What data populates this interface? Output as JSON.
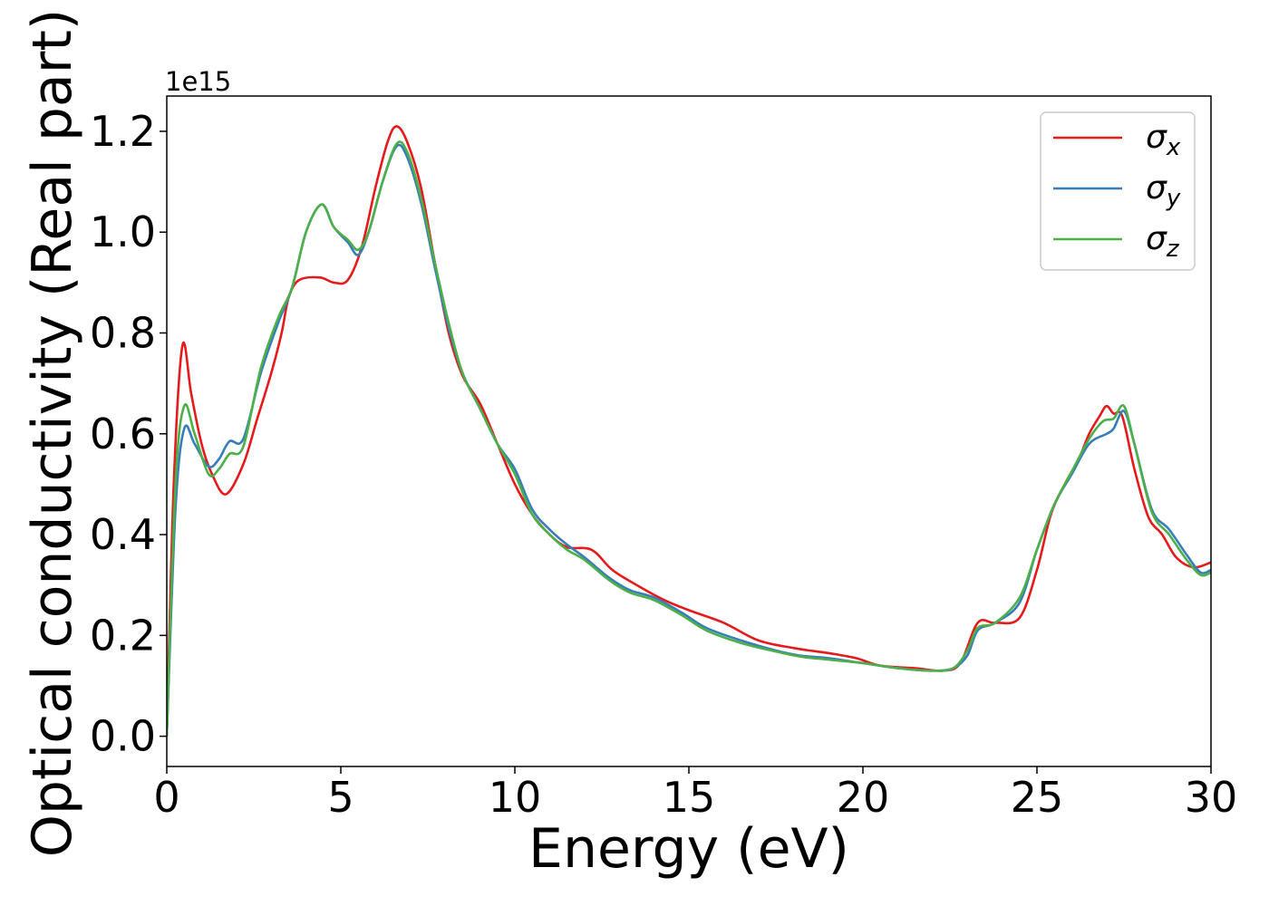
{
  "chart_data": {
    "type": "line",
    "xlabel": "Energy (eV)",
    "ylabel": "Optical conductivity (Real part)",
    "y_offset_label": "1e15",
    "xlim": [
      0,
      30
    ],
    "ylim": [
      -0.06,
      1.27
    ],
    "x_ticks": [
      0,
      5,
      10,
      15,
      20,
      25,
      30
    ],
    "x_tick_labels": [
      "0",
      "5",
      "10",
      "15",
      "20",
      "25",
      "30"
    ],
    "y_ticks": [
      0.0,
      0.2,
      0.4,
      0.6,
      0.8,
      1.0,
      1.2
    ],
    "y_tick_labels": [
      "0.0",
      "0.2",
      "0.4",
      "0.6",
      "0.8",
      "1.0",
      "1.2"
    ],
    "grid": false,
    "legend_position": "top-right",
    "series": [
      {
        "name": "σx",
        "symbol": "σ",
        "subscript": "x",
        "color": "#e41a1c",
        "points": [
          [
            0,
            0.0
          ],
          [
            0.2,
            0.5
          ],
          [
            0.45,
            0.775
          ],
          [
            0.7,
            0.68
          ],
          [
            1.0,
            0.58
          ],
          [
            1.3,
            0.52
          ],
          [
            1.7,
            0.48
          ],
          [
            2.2,
            0.54
          ],
          [
            2.6,
            0.63
          ],
          [
            3.0,
            0.72
          ],
          [
            3.3,
            0.8
          ],
          [
            3.5,
            0.87
          ],
          [
            3.8,
            0.905
          ],
          [
            4.4,
            0.91
          ],
          [
            4.8,
            0.9
          ],
          [
            5.2,
            0.905
          ],
          [
            5.6,
            0.97
          ],
          [
            6.0,
            1.09
          ],
          [
            6.35,
            1.18
          ],
          [
            6.6,
            1.21
          ],
          [
            6.9,
            1.18
          ],
          [
            7.3,
            1.09
          ],
          [
            7.7,
            0.94
          ],
          [
            8.1,
            0.8
          ],
          [
            8.5,
            0.715
          ],
          [
            9.0,
            0.66
          ],
          [
            9.5,
            0.58
          ],
          [
            10.0,
            0.5
          ],
          [
            10.5,
            0.44
          ],
          [
            11.0,
            0.4
          ],
          [
            11.5,
            0.375
          ],
          [
            12.2,
            0.37
          ],
          [
            12.8,
            0.33
          ],
          [
            13.5,
            0.3
          ],
          [
            14.3,
            0.27
          ],
          [
            15.0,
            0.25
          ],
          [
            16.0,
            0.225
          ],
          [
            17.0,
            0.19
          ],
          [
            18.0,
            0.175
          ],
          [
            19.0,
            0.165
          ],
          [
            19.8,
            0.155
          ],
          [
            20.5,
            0.14
          ],
          [
            21.5,
            0.135
          ],
          [
            22.3,
            0.13
          ],
          [
            22.8,
            0.145
          ],
          [
            23.3,
            0.225
          ],
          [
            23.8,
            0.225
          ],
          [
            24.5,
            0.235
          ],
          [
            25.0,
            0.33
          ],
          [
            25.4,
            0.44
          ],
          [
            25.8,
            0.5
          ],
          [
            26.2,
            0.55
          ],
          [
            26.5,
            0.6
          ],
          [
            26.8,
            0.635
          ],
          [
            27.0,
            0.655
          ],
          [
            27.2,
            0.64
          ],
          [
            27.45,
            0.635
          ],
          [
            27.8,
            0.53
          ],
          [
            28.2,
            0.435
          ],
          [
            28.6,
            0.4
          ],
          [
            29.0,
            0.355
          ],
          [
            29.5,
            0.335
          ],
          [
            30.0,
            0.345
          ]
        ]
      },
      {
        "name": "σy",
        "symbol": "σ",
        "subscript": "y",
        "color": "#377eb8",
        "points": [
          [
            0,
            0.0
          ],
          [
            0.25,
            0.45
          ],
          [
            0.5,
            0.61
          ],
          [
            0.8,
            0.58
          ],
          [
            1.2,
            0.535
          ],
          [
            1.5,
            0.55
          ],
          [
            1.8,
            0.585
          ],
          [
            2.2,
            0.59
          ],
          [
            2.7,
            0.72
          ],
          [
            3.2,
            0.82
          ],
          [
            3.6,
            0.89
          ],
          [
            4.0,
            1.0
          ],
          [
            4.45,
            1.055
          ],
          [
            4.8,
            1.01
          ],
          [
            5.2,
            0.98
          ],
          [
            5.5,
            0.955
          ],
          [
            5.8,
            1.0
          ],
          [
            6.2,
            1.1
          ],
          [
            6.6,
            1.17
          ],
          [
            6.9,
            1.15
          ],
          [
            7.3,
            1.06
          ],
          [
            7.7,
            0.93
          ],
          [
            8.1,
            0.81
          ],
          [
            8.5,
            0.72
          ],
          [
            9.0,
            0.65
          ],
          [
            9.5,
            0.58
          ],
          [
            10.0,
            0.53
          ],
          [
            10.5,
            0.45
          ],
          [
            11.0,
            0.41
          ],
          [
            11.5,
            0.38
          ],
          [
            12.0,
            0.355
          ],
          [
            12.7,
            0.315
          ],
          [
            13.3,
            0.29
          ],
          [
            14.0,
            0.275
          ],
          [
            14.8,
            0.245
          ],
          [
            15.5,
            0.215
          ],
          [
            16.5,
            0.19
          ],
          [
            17.5,
            0.17
          ],
          [
            18.2,
            0.16
          ],
          [
            19.0,
            0.155
          ],
          [
            20.0,
            0.145
          ],
          [
            21.0,
            0.135
          ],
          [
            22.0,
            0.13
          ],
          [
            22.6,
            0.135
          ],
          [
            23.0,
            0.16
          ],
          [
            23.3,
            0.21
          ],
          [
            23.8,
            0.225
          ],
          [
            24.5,
            0.265
          ],
          [
            25.0,
            0.37
          ],
          [
            25.5,
            0.46
          ],
          [
            26.0,
            0.52
          ],
          [
            26.5,
            0.58
          ],
          [
            27.0,
            0.6
          ],
          [
            27.2,
            0.61
          ],
          [
            27.5,
            0.645
          ],
          [
            27.8,
            0.58
          ],
          [
            28.3,
            0.45
          ],
          [
            28.8,
            0.41
          ],
          [
            29.3,
            0.36
          ],
          [
            29.7,
            0.325
          ],
          [
            30.0,
            0.33
          ]
        ]
      },
      {
        "name": "σz",
        "symbol": "σ",
        "subscript": "z",
        "color": "#4daf4a",
        "points": [
          [
            0,
            0.0
          ],
          [
            0.25,
            0.5
          ],
          [
            0.5,
            0.655
          ],
          [
            0.8,
            0.6
          ],
          [
            1.2,
            0.52
          ],
          [
            1.5,
            0.53
          ],
          [
            1.8,
            0.56
          ],
          [
            2.2,
            0.575
          ],
          [
            2.7,
            0.73
          ],
          [
            3.2,
            0.83
          ],
          [
            3.6,
            0.89
          ],
          [
            4.0,
            1.0
          ],
          [
            4.45,
            1.055
          ],
          [
            4.8,
            1.01
          ],
          [
            5.2,
            0.985
          ],
          [
            5.5,
            0.965
          ],
          [
            5.8,
            1.0
          ],
          [
            6.2,
            1.1
          ],
          [
            6.6,
            1.175
          ],
          [
            6.9,
            1.16
          ],
          [
            7.3,
            1.07
          ],
          [
            7.7,
            0.94
          ],
          [
            8.1,
            0.82
          ],
          [
            8.5,
            0.72
          ],
          [
            9.0,
            0.65
          ],
          [
            9.5,
            0.58
          ],
          [
            10.0,
            0.52
          ],
          [
            10.5,
            0.44
          ],
          [
            11.0,
            0.4
          ],
          [
            11.5,
            0.37
          ],
          [
            12.0,
            0.35
          ],
          [
            12.7,
            0.31
          ],
          [
            13.3,
            0.285
          ],
          [
            14.0,
            0.27
          ],
          [
            14.8,
            0.24
          ],
          [
            15.5,
            0.21
          ],
          [
            16.5,
            0.185
          ],
          [
            17.5,
            0.168
          ],
          [
            18.2,
            0.158
          ],
          [
            19.0,
            0.152
          ],
          [
            20.0,
            0.145
          ],
          [
            21.0,
            0.135
          ],
          [
            22.0,
            0.13
          ],
          [
            22.6,
            0.135
          ],
          [
            23.0,
            0.17
          ],
          [
            23.3,
            0.215
          ],
          [
            23.8,
            0.225
          ],
          [
            24.5,
            0.275
          ],
          [
            25.0,
            0.37
          ],
          [
            25.5,
            0.46
          ],
          [
            26.0,
            0.525
          ],
          [
            26.5,
            0.59
          ],
          [
            26.9,
            0.625
          ],
          [
            27.2,
            0.63
          ],
          [
            27.5,
            0.655
          ],
          [
            27.8,
            0.58
          ],
          [
            28.3,
            0.445
          ],
          [
            28.8,
            0.4
          ],
          [
            29.3,
            0.35
          ],
          [
            29.7,
            0.32
          ],
          [
            30.0,
            0.325
          ]
        ]
      }
    ]
  }
}
